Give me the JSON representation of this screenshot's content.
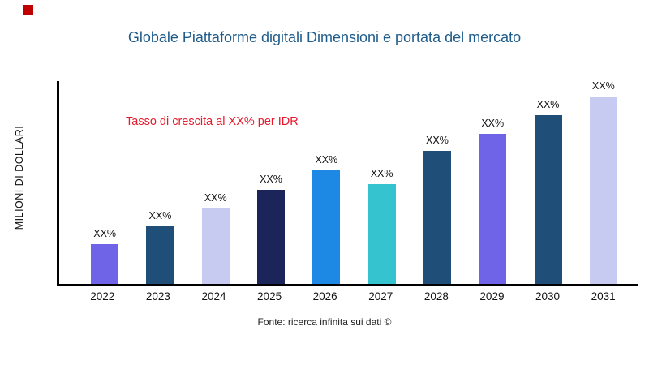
{
  "page": {
    "title": "Globale Piattaforme digitali Dimensioni e portata del mercato",
    "y_axis_label": "MILIONI DI DOLLARI",
    "annotation": "Tasso di crescita al XX% per IDR",
    "source": "Fonte: ricerca infinita sui dati ©"
  },
  "colors": {
    "title_text": "#1F5C8B",
    "annotation_text": "#E8192C",
    "brand_mark": "#C00000",
    "axis": "#000000"
  },
  "chart_data": {
    "type": "bar",
    "title": "Globale Piattaforme digitali Dimensioni e portata del mercato",
    "xlabel": "",
    "ylabel": "MILIONI DI DOLLARI",
    "legend": "none",
    "grid": false,
    "categories": [
      "2022",
      "2023",
      "2024",
      "2025",
      "2026",
      "2027",
      "2028",
      "2029",
      "2030",
      "2031"
    ],
    "values": [
      49,
      71,
      93,
      116,
      140,
      123,
      164,
      185,
      208,
      231
    ],
    "ylim": [
      0,
      252
    ],
    "bar_labels": [
      "XX%",
      "XX%",
      "XX%",
      "XX%",
      "XX%",
      "XX%",
      "XX%",
      "XX%",
      "XX%",
      "XX%"
    ],
    "bar_colors": [
      "#6F63E8",
      "#1F4E79",
      "#C7CBF1",
      "#1B2559",
      "#1E88E5",
      "#35C4CF",
      "#1F4E79",
      "#6F63E8",
      "#1F4E79",
      "#C7CBF1"
    ],
    "annotation": "Tasso di crescita al XX% per IDR",
    "source": "Fonte: ricerca infinita sui dati ©"
  }
}
